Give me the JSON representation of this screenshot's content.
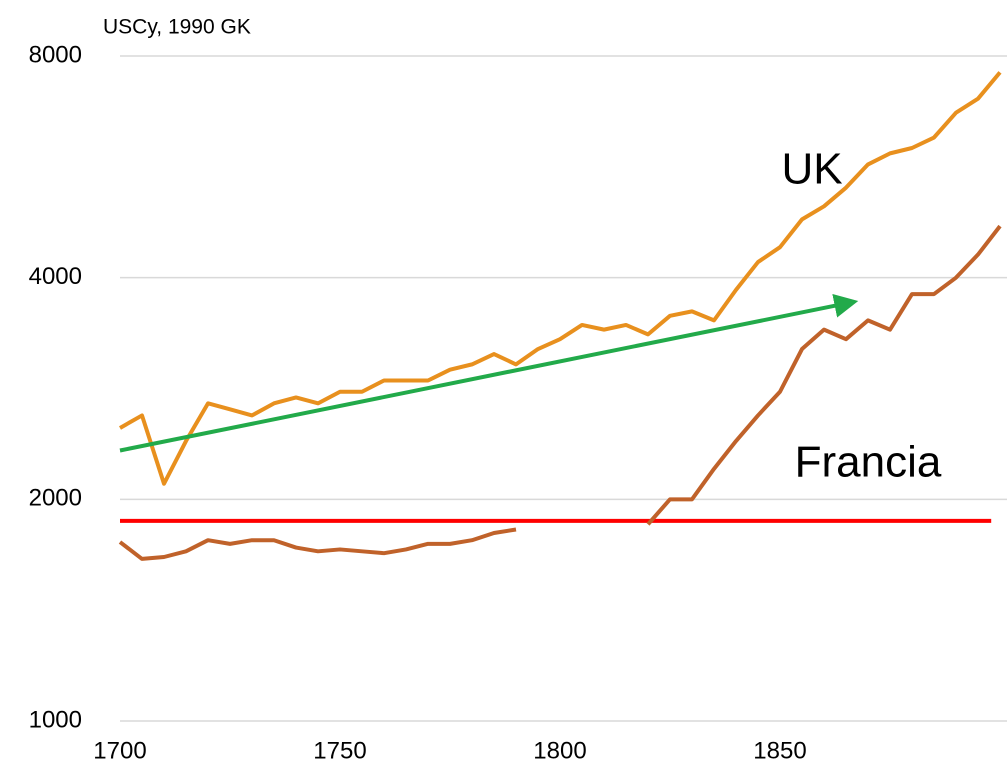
{
  "chart_data": {
    "type": "line",
    "title": "USCy, 1990 GK",
    "log_y": true,
    "grid": true,
    "x": [
      1700,
      1705,
      1710,
      1715,
      1720,
      1725,
      1730,
      1735,
      1740,
      1745,
      1750,
      1755,
      1760,
      1765,
      1770,
      1775,
      1780,
      1785,
      1790,
      1795,
      1800,
      1805,
      1810,
      1815,
      1820,
      1825,
      1830,
      1835,
      1840,
      1845,
      1850,
      1855,
      1860,
      1865,
      1870,
      1875,
      1880,
      1885,
      1890,
      1895,
      1900
    ],
    "series": [
      {
        "name": "UK",
        "color": "#e8901e",
        "values": [
          2500,
          2600,
          2100,
          2400,
          2700,
          2650,
          2600,
          2700,
          2750,
          2700,
          2800,
          2800,
          2900,
          2900,
          2900,
          3000,
          3050,
          3150,
          3050,
          3200,
          3300,
          3450,
          3400,
          3450,
          3350,
          3550,
          3600,
          3500,
          3850,
          4200,
          4400,
          4800,
          5000,
          5300,
          5700,
          5900,
          6000,
          6200,
          6700,
          7000,
          7600
        ]
      },
      {
        "name": "Francia",
        "color": "#c0622a",
        "values": [
          1750,
          1660,
          1670,
          1700,
          1760,
          1740,
          1760,
          1760,
          1720,
          1700,
          1710,
          1700,
          1690,
          1710,
          1740,
          1740,
          1760,
          1800,
          1820,
          null,
          null,
          null,
          null,
          null,
          1850,
          2000,
          2000,
          2200,
          2400,
          2600,
          2800,
          3200,
          3400,
          3300,
          3500,
          3400,
          3800,
          3800,
          4000,
          4300,
          4700
        ]
      }
    ],
    "reference_line": {
      "color": "#ff0000",
      "x": [
        1700,
        1898
      ],
      "values": [
        1870,
        1870
      ]
    },
    "trend_arrow": {
      "color": "#22aa4a",
      "x": [
        1700,
        1866
      ],
      "values": [
        2330,
        3700
      ]
    },
    "xlim": [
      1700,
      1901
    ],
    "xticks": [
      1700,
      1750,
      1800,
      1850
    ],
    "ylim": [
      1000,
      8000
    ],
    "yticks": [
      1000,
      2000,
      4000,
      8000
    ]
  }
}
